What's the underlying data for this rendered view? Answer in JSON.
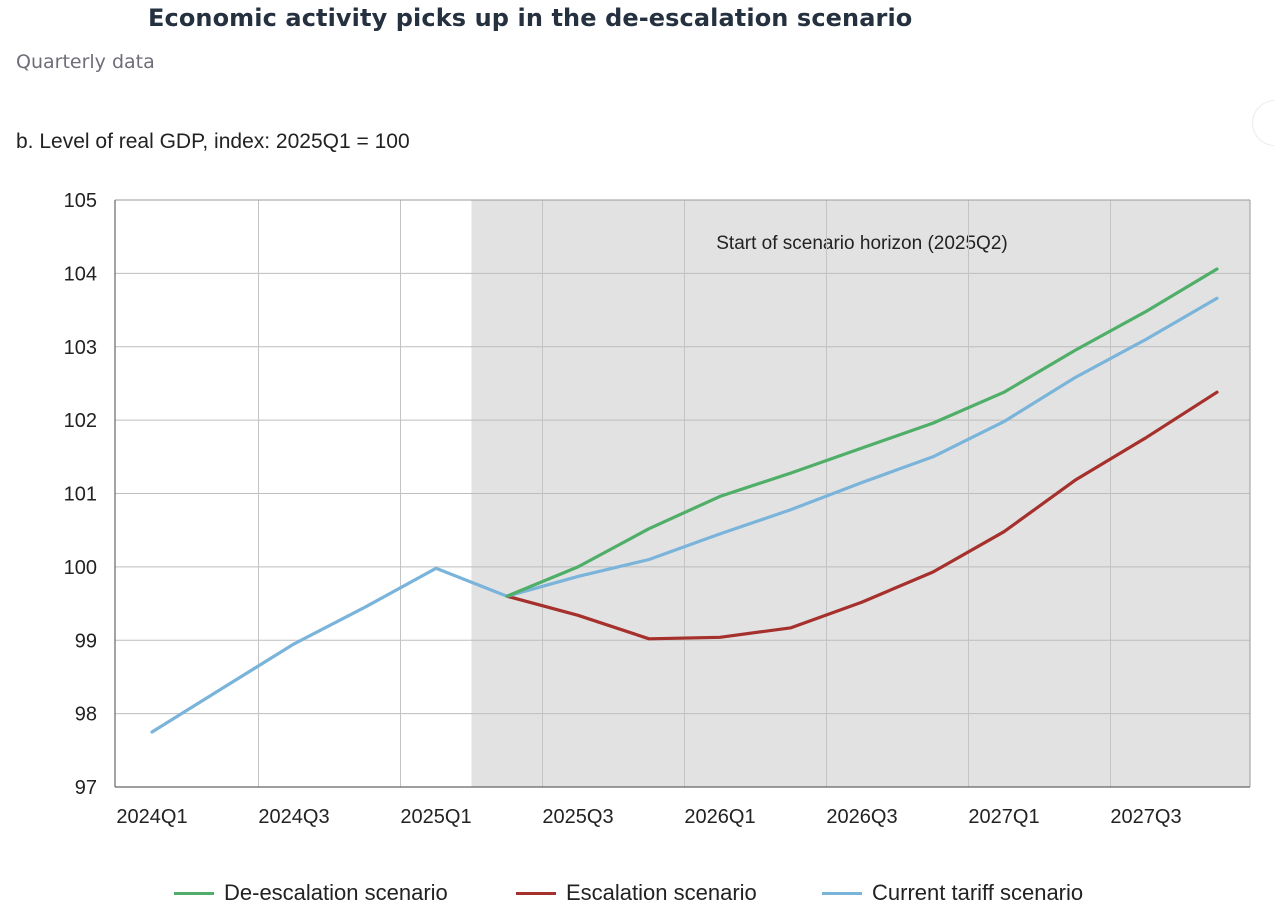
{
  "header": {
    "title": "Economic activity picks up in the de-escalation scenario",
    "subtitle": "Quarterly data"
  },
  "chart_data": {
    "type": "line",
    "title": "b. Level of real GDP, index: 2025Q1 = 100",
    "xlabel": "",
    "ylabel": "",
    "x": [
      "2024Q1",
      "2024Q2",
      "2024Q3",
      "2024Q4",
      "2025Q1",
      "2025Q2",
      "2025Q3",
      "2025Q4",
      "2026Q1",
      "2026Q2",
      "2026Q3",
      "2026Q4",
      "2027Q1",
      "2027Q2",
      "2027Q3",
      "2027Q4"
    ],
    "x_tick_labels": [
      "2024Q1",
      "2024Q3",
      "2025Q1",
      "2025Q3",
      "2026Q1",
      "2026Q3",
      "2027Q1",
      "2027Q3"
    ],
    "ylim": [
      97,
      105
    ],
    "y_ticks": [
      97,
      98,
      99,
      100,
      101,
      102,
      103,
      104,
      105
    ],
    "grid": true,
    "legend_position": "bottom",
    "shaded_region": {
      "from": "2025Q2",
      "label": "Start of scenario horizon (2025Q2)",
      "color": "#e2e2e2"
    },
    "series": [
      {
        "name": "Current tariff scenario",
        "color": "#7ab4da",
        "values": [
          97.75,
          98.35,
          98.95,
          99.45,
          99.98,
          99.6,
          99.87,
          100.1,
          100.45,
          100.78,
          101.15,
          101.5,
          101.98,
          102.58,
          103.1,
          103.66
        ]
      },
      {
        "name": "De-escalation scenario",
        "color": "#4fae68",
        "values": [
          null,
          null,
          null,
          null,
          null,
          99.6,
          100.0,
          100.52,
          100.96,
          101.28,
          101.62,
          101.96,
          102.38,
          102.95,
          103.48,
          104.06
        ]
      },
      {
        "name": "Escalation scenario",
        "color": "#a5302c",
        "values": [
          null,
          null,
          null,
          null,
          null,
          99.6,
          99.34,
          99.02,
          99.04,
          99.17,
          99.52,
          99.93,
          100.48,
          101.18,
          101.76,
          102.38
        ]
      }
    ]
  },
  "legend": [
    {
      "label": "De-escalation scenario",
      "color": "#4fae68"
    },
    {
      "label": "Escalation scenario",
      "color": "#a5302c"
    },
    {
      "label": "Current tariff scenario",
      "color": "#7ab4da"
    }
  ]
}
